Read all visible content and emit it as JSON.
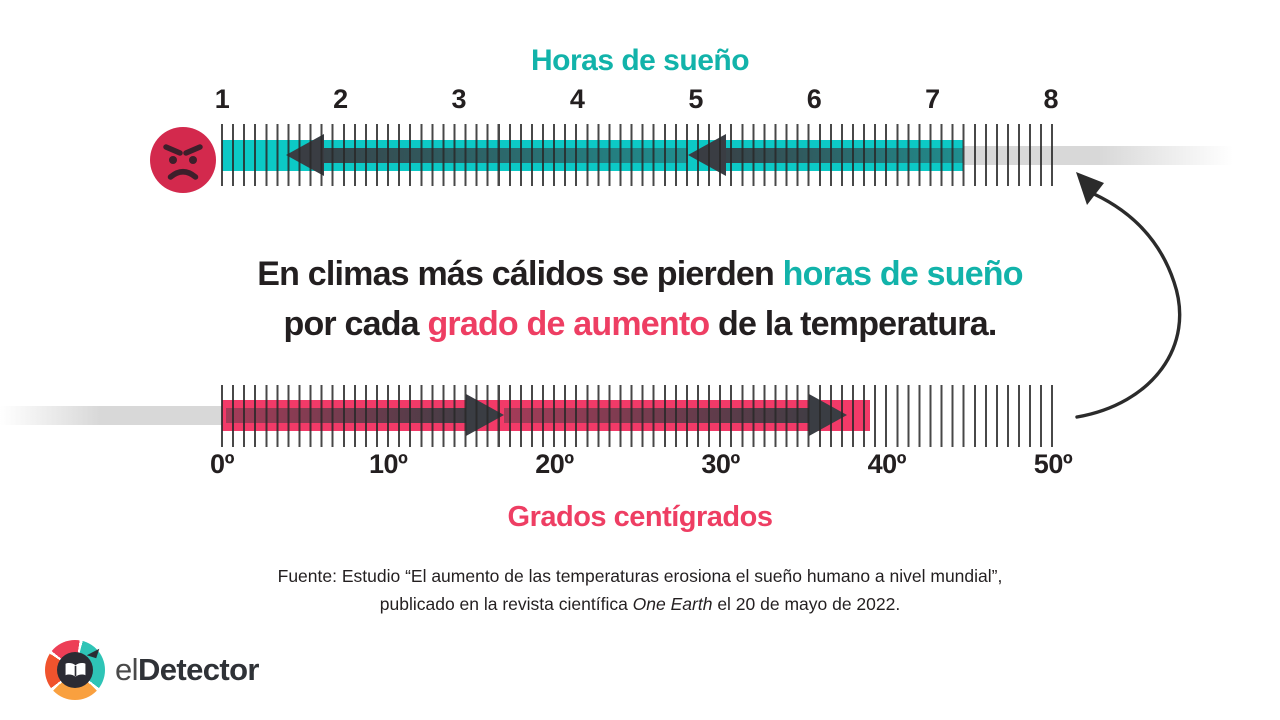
{
  "palette": {
    "teal_text": "#12B3AA",
    "teal_bar": "#0CC9C6",
    "pink_bar": "#F23A68",
    "pink_text": "#EE3E63",
    "arrow": "#3A3D43",
    "ink": "#231F20",
    "gray_bar": "#D8D8D8",
    "face_red": "#D3294D",
    "face_features": "#3D1F2B",
    "logo_teal": "#2EC4B6",
    "logo_pink": "#ED3E56",
    "logo_orange": "#F0532D",
    "logo_yellow": "#F9A03F",
    "logo_core": "#2B2B33"
  },
  "top_scale": {
    "title": "Horas de sueño",
    "labels": [
      "1",
      "2",
      "3",
      "4",
      "5",
      "6",
      "7",
      "8"
    ]
  },
  "headline": {
    "line1_text": "En climas más cálidos se pierden ",
    "line1_highlight": "horas de sueño",
    "line2_pre": "por cada ",
    "line2_highlight": "grado de aumento",
    "line2_post": " de la temperatura."
  },
  "bottom_scale": {
    "title": "Grados centígrados",
    "labels": [
      "0º",
      "10º",
      "20º",
      "30º",
      "40º",
      "50º"
    ]
  },
  "source": {
    "line1": "Fuente: Estudio “El aumento de las temperaturas erosiona el sueño humano a nivel mundial”,",
    "line2_pre": "publicado en la revista científica ",
    "line2_italic": "One Earth",
    "line2_post": " el 20 de mayo de 2022."
  },
  "logo": {
    "prefix": "el",
    "name": "Detector"
  },
  "icons": {
    "face": "angry-face-icon",
    "curved_arrow": "curved-arrow-icon",
    "logo_mark": "eldetector-logo-icon"
  }
}
